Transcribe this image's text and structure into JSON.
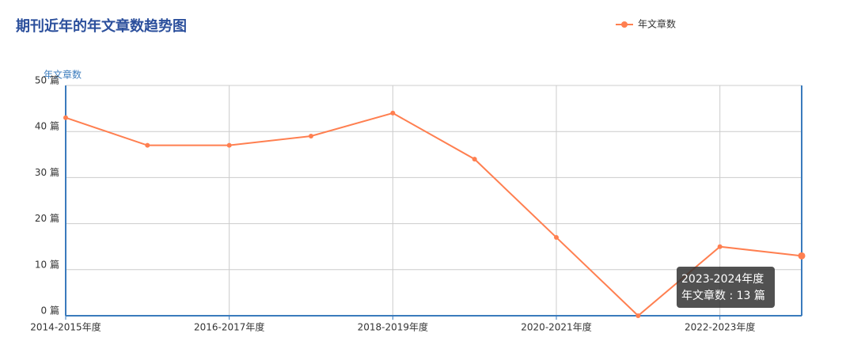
{
  "chart_data": {
    "type": "line",
    "title": "期刊近年的年文章数趋势图",
    "y_axis_label": "年文章数",
    "categories": [
      "2014-2015年度",
      null,
      "2016-2017年度",
      null,
      "2018-2019年度",
      null,
      "2020-2021年度",
      null,
      "2022-2023年度",
      null
    ],
    "series": [
      {
        "name": "年文章数",
        "color": "#ff7f50",
        "values": [
          43,
          37,
          37,
          39,
          44,
          34,
          17,
          0,
          15,
          13
        ]
      }
    ],
    "ylim": [
      0,
      50
    ],
    "yticks": [
      {
        "value": 0,
        "label": "0 篇"
      },
      {
        "value": 10,
        "label": "10 篇"
      },
      {
        "value": 20,
        "label": "20 篇"
      },
      {
        "value": 30,
        "label": "30 篇"
      },
      {
        "value": 40,
        "label": "40 篇"
      },
      {
        "value": 50,
        "label": "50 篇"
      }
    ],
    "grid": true,
    "legend": "top-right",
    "tooltip": {
      "category": "2023-2024年度",
      "label": "年文章数 : 13 篇"
    }
  }
}
